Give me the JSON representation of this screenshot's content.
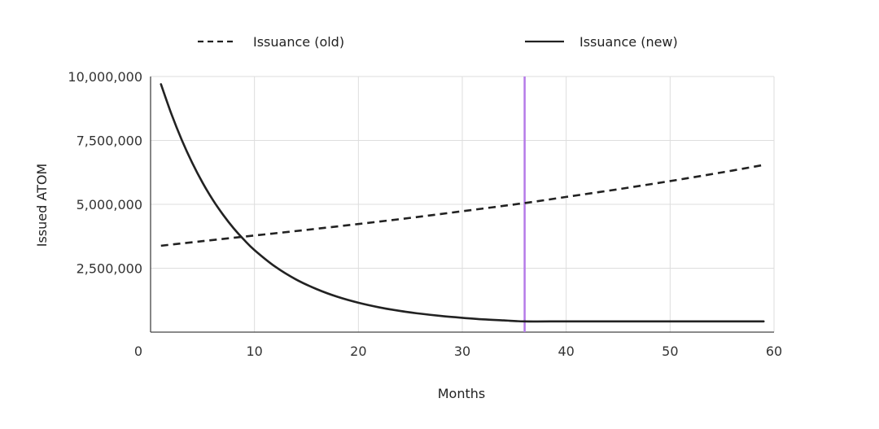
{
  "chart_data": {
    "type": "line",
    "xlabel": "Months",
    "ylabel": "Issued ATOM",
    "xlim": [
      0,
      60
    ],
    "ylim": [
      0,
      10000000
    ],
    "x_ticks": [
      0,
      10,
      20,
      30,
      40,
      50,
      60
    ],
    "x_tick_labels": [
      "0",
      "10",
      "20",
      "30",
      "40",
      "50",
      "60"
    ],
    "y_ticks": [
      2500000,
      5000000,
      7500000,
      10000000
    ],
    "y_tick_labels": [
      "2,500,000",
      "5,000,000",
      "7,500,000",
      "10,000,000"
    ],
    "grid": true,
    "legend_position": "top",
    "series": [
      {
        "name": "Issuance (old)",
        "style": "dashed",
        "color": "#222222",
        "x": [
          1,
          5,
          10,
          15,
          20,
          25,
          30,
          36,
          40,
          45,
          50,
          55,
          59
        ],
        "y": [
          3380000,
          3560000,
          3780000,
          4000000,
          4230000,
          4470000,
          4730000,
          5050000,
          5290000,
          5590000,
          5910000,
          6250000,
          6540000
        ]
      },
      {
        "name": "Issuance (new)",
        "style": "solid",
        "color": "#222222",
        "x": [
          1,
          2,
          3,
          4,
          5,
          6,
          7,
          8,
          9,
          10,
          12,
          14,
          16,
          18,
          20,
          22,
          24,
          26,
          28,
          30,
          32,
          34,
          36,
          40,
          45,
          50,
          55,
          59
        ],
        "y": [
          9700000,
          8540000,
          7520000,
          6630000,
          5850000,
          5170000,
          4580000,
          4060000,
          3610000,
          3210000,
          2560000,
          2060000,
          1680000,
          1380000,
          1150000,
          970000,
          830000,
          720000,
          630000,
          560000,
          500000,
          460000,
          420000,
          420000,
          420000,
          420000,
          420000,
          420000
        ]
      }
    ],
    "vertical_marker": {
      "x": 36,
      "color": "#b57be8"
    }
  }
}
